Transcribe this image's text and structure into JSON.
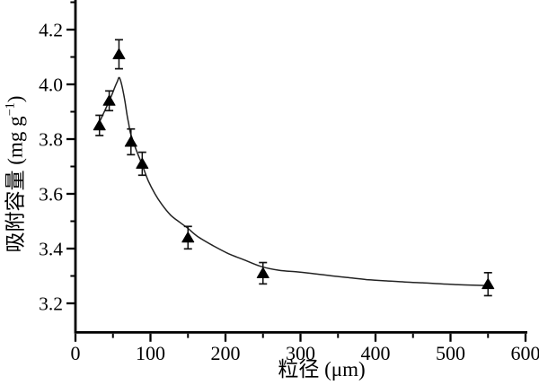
{
  "figure": {
    "background": "#ffffff",
    "axis_color": "#000000",
    "curve_color": "#222222",
    "marker_color": "#000000"
  },
  "chart_data": {
    "type": "scatter",
    "title": "",
    "xlabel": "粒径 (μm)",
    "ylabel": "吸附容量 (mg g−1)",
    "ylabel_parts": {
      "prefix": "吸附容量 (mg g",
      "sup": "−1",
      "suffix": ")"
    },
    "xlim": [
      0,
      600
    ],
    "ylim": [
      3.1,
      4.31
    ],
    "grid": false,
    "legend": null,
    "xticks_major": [
      0,
      100,
      200,
      300,
      400,
      500,
      600
    ],
    "xticks_minor": [
      50,
      150,
      250,
      350,
      450,
      550
    ],
    "yticks_major": [
      3.2,
      3.4,
      3.6,
      3.8,
      4.0,
      4.2
    ],
    "yticks_minor": [
      3.3,
      3.5,
      3.7,
      3.9,
      4.1,
      4.3
    ],
    "series": [
      {
        "name": "吸附容量",
        "marker": "triangle-up-filled",
        "x": [
          32,
          45,
          58,
          74,
          89,
          150,
          250,
          550
        ],
        "y": [
          3.85,
          3.94,
          4.11,
          3.79,
          3.71,
          3.44,
          3.31,
          3.27
        ],
        "yerr": [
          0.037,
          0.036,
          0.053,
          0.047,
          0.042,
          0.041,
          0.039,
          0.042
        ]
      }
    ],
    "fit_curve": {
      "points": [
        [
          32,
          3.862
        ],
        [
          36,
          3.886
        ],
        [
          41,
          3.915
        ],
        [
          45,
          3.94
        ],
        [
          49,
          3.965
        ],
        [
          53,
          3.993
        ],
        [
          56,
          4.012
        ],
        [
          58,
          4.025
        ],
        [
          60,
          4.015
        ],
        [
          63,
          3.982
        ],
        [
          66,
          3.938
        ],
        [
          69,
          3.885
        ],
        [
          71,
          3.856
        ],
        [
          73,
          3.825
        ],
        [
          76,
          3.8
        ],
        [
          79,
          3.775
        ],
        [
          84,
          3.74
        ],
        [
          89,
          3.706
        ],
        [
          97,
          3.648
        ],
        [
          106,
          3.6
        ],
        [
          115,
          3.562
        ],
        [
          127,
          3.522
        ],
        [
          139,
          3.496
        ],
        [
          149,
          3.476
        ],
        [
          163,
          3.444
        ],
        [
          184,
          3.41
        ],
        [
          205,
          3.38
        ],
        [
          223,
          3.361
        ],
        [
          247,
          3.335
        ],
        [
          271,
          3.321
        ],
        [
          295,
          3.315
        ],
        [
          319,
          3.308
        ],
        [
          343,
          3.3
        ],
        [
          367,
          3.293
        ],
        [
          391,
          3.286
        ],
        [
          415,
          3.282
        ],
        [
          439,
          3.278
        ],
        [
          463,
          3.275
        ],
        [
          487,
          3.271
        ],
        [
          511,
          3.268
        ],
        [
          535,
          3.266
        ],
        [
          549,
          3.265
        ]
      ]
    }
  }
}
